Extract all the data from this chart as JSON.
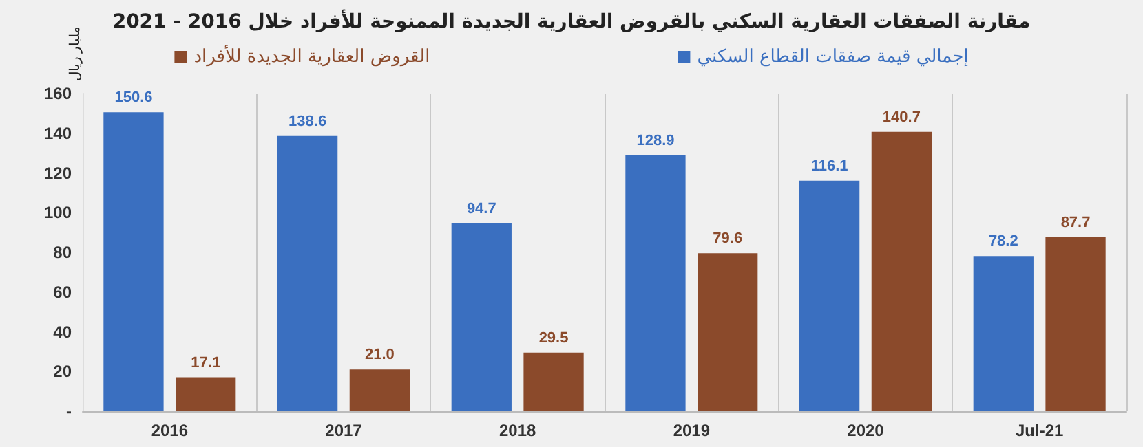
{
  "chart_data": {
    "type": "bar",
    "title": "مقارنة الصفقات العقارية السكني بالقروض العقارية الجديدة الممنوحة للأفراد خلال 2016 - 2021",
    "ylabel": "مليار ريال",
    "categories": [
      "2016",
      "2017",
      "2018",
      "2019",
      "2020",
      "Jul-21"
    ],
    "series": [
      {
        "name": "إجمالي قيمة صفقات القطاع السكني",
        "color": "#3a6fc0",
        "values": [
          150.6,
          138.6,
          94.7,
          128.9,
          116.1,
          78.2
        ],
        "value_labels": [
          "150.6",
          "138.6",
          "94.7",
          "128.9",
          "116.1",
          "78.2"
        ]
      },
      {
        "name": "القروض العقارية الجديدة للأفراد",
        "color": "#8b4a2b",
        "values": [
          17.1,
          21.0,
          29.5,
          79.6,
          140.7,
          87.7
        ],
        "value_labels": [
          "17.1",
          "21.0",
          "29.5",
          "79.6",
          "140.7",
          "87.7"
        ]
      }
    ],
    "ylim": [
      0,
      160
    ],
    "yticks": [
      {
        "value": 0,
        "label": "-"
      },
      20,
      40,
      60,
      80,
      100,
      120,
      140,
      160
    ],
    "grid": "x",
    "legend": "top"
  }
}
